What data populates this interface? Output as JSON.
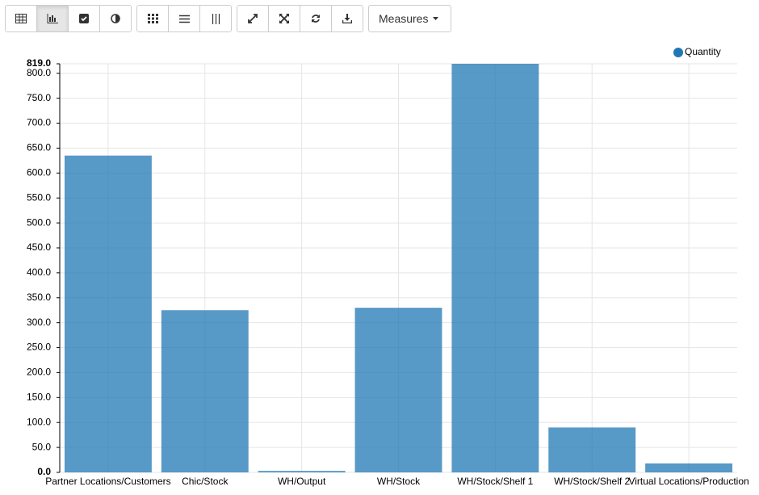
{
  "toolbar": {
    "measures_label": "Measures"
  },
  "chart_data": {
    "type": "bar",
    "categories": [
      "Partner Locations/Customers",
      "Chic/Stock",
      "WH/Output",
      "WH/Stock",
      "WH/Stock/Shelf 1",
      "WH/Stock/Shelf 2",
      "Virtual Locations/Production"
    ],
    "series": [
      {
        "name": "Quantity",
        "color": "#1f77b4",
        "values": [
          635,
          325,
          3,
          330,
          819,
          90,
          18
        ]
      }
    ],
    "ylim": [
      0,
      819
    ],
    "yticks": [
      {
        "value": 0,
        "label": "0.0"
      },
      {
        "value": 50,
        "label": "50.0"
      },
      {
        "value": 100,
        "label": "100.0"
      },
      {
        "value": 150,
        "label": "150.0"
      },
      {
        "value": 200,
        "label": "200.0"
      },
      {
        "value": 250,
        "label": "250.0"
      },
      {
        "value": 300,
        "label": "300.0"
      },
      {
        "value": 350,
        "label": "350.0"
      },
      {
        "value": 400,
        "label": "400.0"
      },
      {
        "value": 450,
        "label": "450.0"
      },
      {
        "value": 500,
        "label": "500.0"
      },
      {
        "value": 550,
        "label": "550.0"
      },
      {
        "value": 600,
        "label": "600.0"
      },
      {
        "value": 650,
        "label": "650.0"
      },
      {
        "value": 700,
        "label": "700.0"
      },
      {
        "value": 750,
        "label": "750.0"
      },
      {
        "value": 800,
        "label": "800.0"
      },
      {
        "value": 819,
        "label": "819.0"
      }
    ],
    "grid": true,
    "legend": "top-right"
  }
}
